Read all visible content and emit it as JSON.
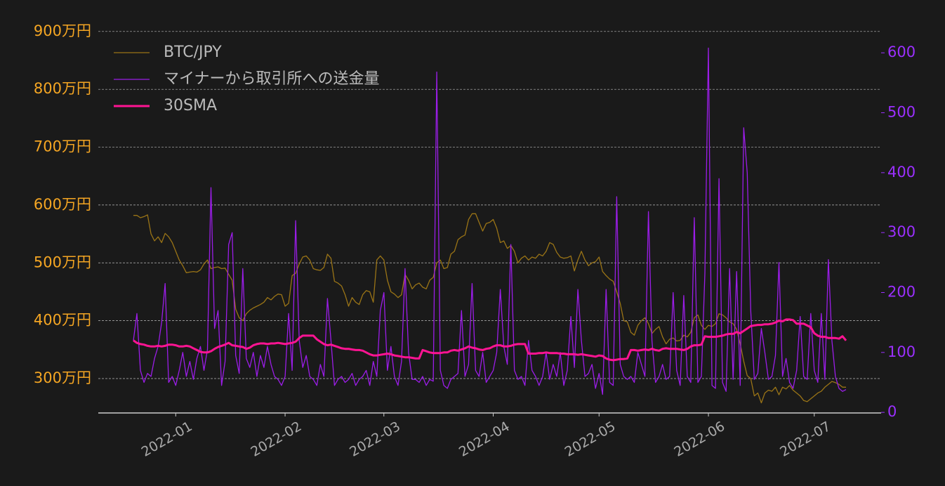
{
  "chart_data": {
    "type": "line",
    "legend": "upper left",
    "grid": true,
    "categories": [
      null,
      null,
      null,
      null,
      null,
      null,
      null,
      null,
      null,
      null,
      null,
      null,
      "2022-01",
      null,
      null,
      null,
      null,
      null,
      null,
      null,
      null,
      null,
      null,
      null,
      null,
      null,
      null,
      null,
      null,
      null,
      null,
      null,
      null,
      null,
      null,
      null,
      null,
      null,
      null,
      null,
      null,
      null,
      null,
      "2022-02",
      null,
      null,
      null,
      null,
      null,
      null,
      null,
      null,
      null,
      null,
      null,
      null,
      null,
      null,
      null,
      null,
      null,
      null,
      null,
      null,
      null,
      null,
      null,
      null,
      null,
      null,
      null,
      "2022-03",
      null,
      null,
      null,
      null,
      null,
      null,
      null,
      null,
      null,
      null,
      null,
      null,
      null,
      null,
      null,
      null,
      null,
      null,
      null,
      null,
      null,
      null,
      null,
      null,
      null,
      null,
      null,
      null,
      null,
      null,
      "2022-04",
      null,
      null,
      null,
      null,
      null,
      null,
      null,
      null,
      null,
      null,
      null,
      null,
      null,
      null,
      null,
      null,
      null,
      null,
      null,
      null,
      null,
      null,
      null,
      null,
      null,
      null,
      null,
      null,
      null,
      "2022-05",
      null,
      null,
      null,
      null,
      null,
      null,
      null,
      null,
      null,
      null,
      null,
      null,
      null,
      null,
      null,
      null,
      null,
      null,
      null,
      null,
      null,
      null,
      null,
      null,
      null,
      null,
      null,
      null,
      null,
      null,
      "2022-06",
      null,
      null,
      null,
      null,
      null,
      null,
      null,
      null,
      null,
      null,
      null,
      null,
      null,
      null,
      null,
      null,
      null,
      null,
      null,
      null,
      null,
      null,
      null,
      null,
      null,
      null,
      null,
      null,
      null,
      "2022-07",
      null,
      null,
      null,
      null,
      null,
      null,
      null,
      null,
      null
    ],
    "ylim": [
      240.5,
      918
    ],
    "yticks": [
      {
        "value": 300,
        "label": "300万円"
      },
      {
        "value": 400,
        "label": "400万円"
      },
      {
        "value": 500,
        "label": "500万円"
      },
      {
        "value": 600,
        "label": "600万円"
      },
      {
        "value": 700,
        "label": "700万円"
      },
      {
        "value": 800,
        "label": "800万円"
      },
      {
        "value": 900,
        "label": "900万円"
      }
    ],
    "y2lim": [
      -1,
      653
    ],
    "y2ticks": [
      0,
      100,
      200,
      300,
      400,
      500,
      600
    ],
    "series": [
      {
        "name": "BTC/JPY",
        "color": "#9a7416",
        "width": 1.3,
        "values": [
          582,
          582,
          578,
          580,
          583,
          550,
          538,
          545,
          535,
          551,
          545,
          535,
          520,
          505,
          495,
          483,
          484,
          485,
          484,
          488,
          498,
          505,
          490,
          492,
          493,
          490,
          491,
          480,
          470,
          420,
          405,
          400,
          412,
          418,
          422,
          425,
          428,
          432,
          440,
          436,
          442,
          446,
          445,
          425,
          430,
          478,
          482,
          498,
          510,
          512,
          505,
          490,
          488,
          487,
          492,
          515,
          508,
          468,
          465,
          460,
          445,
          425,
          440,
          432,
          428,
          445,
          452,
          450,
          432,
          505,
          512,
          505,
          470,
          450,
          446,
          440,
          445,
          480,
          470,
          455,
          462,
          465,
          458,
          455,
          470,
          475,
          500,
          505,
          490,
          492,
          515,
          520,
          540,
          545,
          548,
          575,
          585,
          585,
          570,
          555,
          568,
          570,
          575,
          560,
          535,
          538,
          525,
          530,
          520,
          500,
          508,
          512,
          505,
          510,
          508,
          515,
          512,
          520,
          535,
          532,
          518,
          510,
          508,
          509,
          512,
          486,
          505,
          520,
          505,
          495,
          500,
          502,
          510,
          485,
          478,
          472,
          468,
          450,
          430,
          400,
          398,
          380,
          375,
          392,
          400,
          405,
          395,
          378,
          385,
          390,
          372,
          360,
          368,
          370,
          365,
          366,
          375,
          372,
          380,
          405,
          410,
          392,
          385,
          392,
          390,
          395,
          412,
          410,
          405,
          398,
          395,
          385,
          360,
          330,
          305,
          300,
          270,
          275,
          258,
          275,
          280,
          278,
          285,
          272,
          285,
          282,
          288,
          280,
          275,
          270,
          262,
          260,
          265,
          270,
          275,
          278,
          285,
          290,
          295,
          293,
          290,
          285,
          285
        ]
      },
      {
        "name": "マイナーから取引所への送金量",
        "color": "#9b1de8",
        "width": 1.3,
        "axis": "y2",
        "values": [
          120,
          165,
          70,
          50,
          65,
          60,
          90,
          110,
          150,
          215,
          50,
          60,
          45,
          70,
          100,
          60,
          85,
          55,
          90,
          110,
          70,
          105,
          375,
          140,
          170,
          45,
          85,
          280,
          300,
          95,
          65,
          240,
          90,
          75,
          100,
          60,
          95,
          75,
          110,
          80,
          60,
          55,
          45,
          60,
          165,
          70,
          320,
          120,
          75,
          95,
          60,
          55,
          45,
          80,
          60,
          190,
          120,
          45,
          55,
          60,
          50,
          55,
          65,
          45,
          55,
          60,
          70,
          45,
          85,
          60,
          170,
          200,
          70,
          110,
          60,
          45,
          85,
          240,
          100,
          55,
          55,
          50,
          60,
          45,
          55,
          52,
          568,
          70,
          45,
          40,
          55,
          60,
          65,
          170,
          60,
          80,
          215,
          70,
          60,
          100,
          50,
          60,
          70,
          100,
          205,
          110,
          80,
          280,
          70,
          55,
          60,
          45,
          120,
          70,
          60,
          45,
          60,
          100,
          55,
          80,
          60,
          100,
          45,
          70,
          160,
          75,
          205,
          120,
          60,
          65,
          80,
          40,
          65,
          30,
          205,
          50,
          45,
          360,
          80,
          60,
          55,
          60,
          50,
          100,
          80,
          60,
          335,
          120,
          50,
          60,
          80,
          55,
          60,
          200,
          70,
          45,
          195,
          60,
          50,
          325,
          50,
          60,
          232,
          608,
          45,
          40,
          390,
          50,
          35,
          240,
          55,
          235,
          45,
          475,
          400,
          170,
          55,
          65,
          140,
          100,
          55,
          60,
          95,
          250,
          60,
          90,
          50,
          40,
          70,
          160,
          60,
          55,
          165,
          70,
          50,
          165,
          55,
          255,
          120,
          60,
          40,
          35,
          38
        ]
      },
      {
        "name": "30SMA",
        "color": "#ff1493",
        "width": 3,
        "axis": "y2",
        "values": [
          120,
          116,
          114,
          113,
          111,
          110,
          110,
          111,
          110,
          111,
          113,
          113,
          112,
          110,
          110,
          111,
          110,
          107,
          104,
          101,
          100,
          100,
          102,
          106,
          109,
          111,
          113,
          116,
          112,
          111,
          110,
          109,
          106,
          108,
          112,
          114,
          115,
          115,
          114,
          115,
          115,
          116,
          115,
          114,
          115,
          116,
          118,
          124,
          128,
          128,
          128,
          128,
          122,
          118,
          114,
          112,
          113,
          111,
          109,
          107,
          106,
          106,
          105,
          104,
          104,
          103,
          100,
          97,
          95,
          95,
          96,
          97,
          98,
          97,
          95,
          94,
          93,
          92,
          92,
          91,
          90,
          90,
          104,
          102,
          100,
          99,
          99,
          99,
          100,
          100,
          103,
          104,
          103,
          105,
          107,
          110,
          108,
          107,
          105,
          104,
          106,
          107,
          110,
          112,
          112,
          110,
          110,
          111,
          113,
          114,
          114,
          114,
          98,
          98,
          98,
          99,
          99,
          100,
          99,
          99,
          99,
          98,
          98,
          97,
          97,
          97,
          96,
          97,
          96,
          95,
          94,
          93,
          95,
          94,
          90,
          88,
          87,
          88,
          89,
          89,
          90,
          104,
          104,
          103,
          104,
          105,
          104,
          106,
          104,
          103,
          106,
          107,
          106,
          106,
          106,
          105,
          104,
          106,
          110,
          112,
          112,
          113,
          127,
          126,
          126,
          126,
          127,
          128,
          130,
          131,
          131,
          134,
          132,
          136,
          140,
          144,
          145,
          146,
          146,
          147,
          147,
          148,
          150,
          153,
          152,
          155,
          155,
          154,
          148,
          148,
          148,
          145,
          142,
          132,
          128,
          126,
          126,
          124,
          124,
          124,
          123,
          127,
          120
        ]
      }
    ]
  }
}
